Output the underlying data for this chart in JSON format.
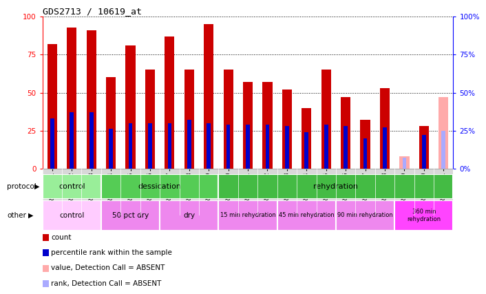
{
  "title": "GDS2713 / 10619_at",
  "samples": [
    "GSM21661",
    "GSM21662",
    "GSM21663",
    "GSM21664",
    "GSM21665",
    "GSM21666",
    "GSM21667",
    "GSM21668",
    "GSM21669",
    "GSM21670",
    "GSM21671",
    "GSM21672",
    "GSM21673",
    "GSM21674",
    "GSM21675",
    "GSM21676",
    "GSM21677",
    "GSM21678",
    "GSM21679",
    "GSM21680",
    "GSM21681"
  ],
  "count_values": [
    82,
    93,
    91,
    60,
    81,
    65,
    87,
    65,
    95,
    65,
    57,
    57,
    52,
    40,
    65,
    47,
    32,
    53,
    null,
    28,
    null
  ],
  "rank_values": [
    33,
    37,
    37,
    26,
    30,
    30,
    30,
    32,
    30,
    29,
    29,
    29,
    28,
    24,
    29,
    28,
    20,
    27,
    null,
    22,
    null
  ],
  "absent_count": [
    null,
    null,
    null,
    null,
    null,
    null,
    null,
    null,
    null,
    null,
    null,
    null,
    null,
    null,
    null,
    null,
    null,
    null,
    8,
    null,
    47
  ],
  "absent_rank": [
    null,
    null,
    null,
    null,
    null,
    null,
    null,
    null,
    null,
    null,
    null,
    null,
    null,
    null,
    null,
    null,
    null,
    null,
    7,
    null,
    25
  ],
  "bar_color": "#cc0000",
  "rank_color": "#0000cc",
  "absent_bar_color": "#ffaaaa",
  "absent_rank_color": "#aaaaff",
  "ylim": [
    0,
    100
  ],
  "yticks": [
    0,
    25,
    50,
    75,
    100
  ],
  "protocol_groups": [
    {
      "label": "control",
      "start": 0,
      "end": 2,
      "color": "#99ee99"
    },
    {
      "label": "dessication",
      "start": 3,
      "end": 8,
      "color": "#55cc55"
    },
    {
      "label": "rehydration",
      "start": 9,
      "end": 20,
      "color": "#44bb44"
    }
  ],
  "other_groups": [
    {
      "label": "control",
      "start": 0,
      "end": 2,
      "color": "#ffccff"
    },
    {
      "label": "50 pct dry",
      "start": 3,
      "end": 5,
      "color": "#ee88ee"
    },
    {
      "label": "dry",
      "start": 6,
      "end": 8,
      "color": "#ee88ee"
    },
    {
      "label": "15 min rehydration",
      "start": 9,
      "end": 11,
      "color": "#ee88ee"
    },
    {
      "label": "45 min rehydration",
      "start": 12,
      "end": 14,
      "color": "#ee88ee"
    },
    {
      "label": "90 min rehydration",
      "start": 15,
      "end": 17,
      "color": "#ee88ee"
    },
    {
      "label": "360 min\nrehydration",
      "start": 18,
      "end": 20,
      "color": "#ff44ff"
    }
  ]
}
